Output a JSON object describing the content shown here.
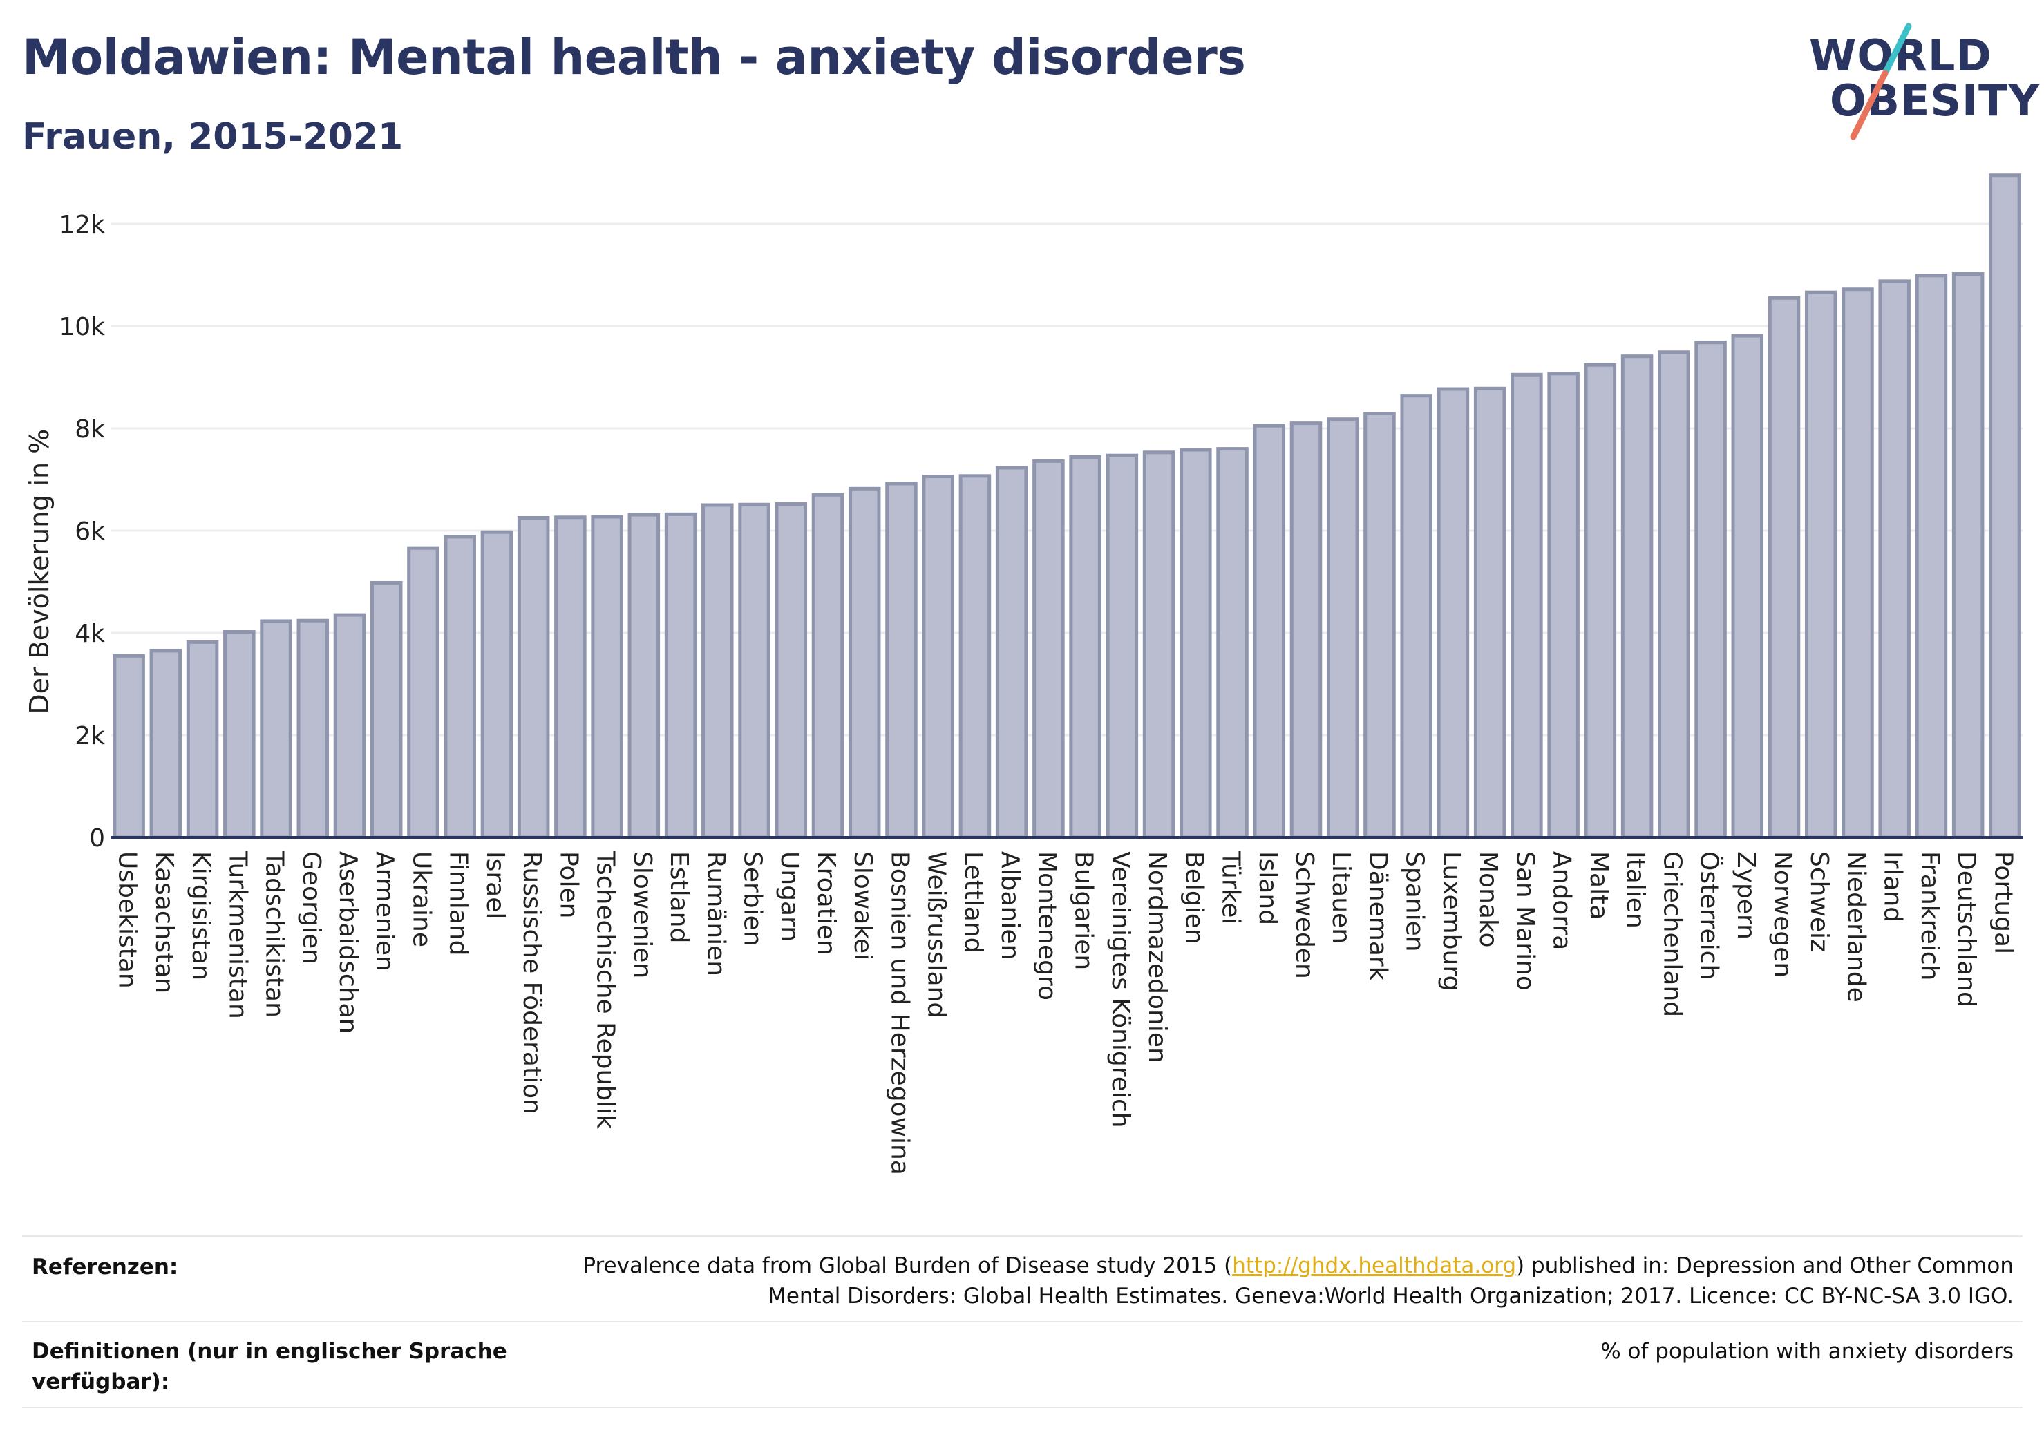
{
  "header": {
    "title": "Moldawien: Mental health - anxiety disorders",
    "subtitle": "Frauen, 2015-2021"
  },
  "logo": {
    "line1": "WORLD",
    "line2": "OBESITY",
    "accent_teal": "#3cbfc7",
    "accent_red": "#e8735c"
  },
  "chart_data": {
    "type": "bar",
    "ylabel": "Der Bevölkerung in %",
    "ylim": [
      0,
      13000
    ],
    "yticks": [
      0,
      2000,
      4000,
      6000,
      8000,
      10000,
      12000
    ],
    "ytick_labels": [
      "0",
      "2k",
      "4k",
      "6k",
      "8k",
      "10k",
      "12k"
    ],
    "grid": true,
    "bar_fill": "#b9bdcf",
    "bar_stroke": "#8f95ad",
    "categories": [
      "Usbekistan",
      "Kasachstan",
      "Kirgisistan",
      "Turkmenistan",
      "Tadschikistan",
      "Georgien",
      "Aserbaidschan",
      "Armenien",
      "Ukraine",
      "Finnland",
      "Israel",
      "Russische Föderation",
      "Polen",
      "Tschechische Republik",
      "Slowenien",
      "Estland",
      "Rumänien",
      "Serbien",
      "Ungarn",
      "Kroatien",
      "Slowakei",
      "Bosnien und Herzegowina",
      "Weißrussland",
      "Lettland",
      "Albanien",
      "Montenegro",
      "Bulgarien",
      "Vereinigtes Königreich",
      "Nordmazedonien",
      "Belgien",
      "Türkei",
      "Island",
      "Schweden",
      "Litauen",
      "Dänemark",
      "Spanien",
      "Luxemburg",
      "Monako",
      "San Marino",
      "Andorra",
      "Malta",
      "Italien",
      "Griechenland",
      "Österreich",
      "Zypern",
      "Norwegen",
      "Schweiz",
      "Niederlande",
      "Irland",
      "Frankreich",
      "Deutschland",
      "Portugal"
    ],
    "values": [
      3550,
      3650,
      3820,
      4020,
      4230,
      4240,
      4350,
      4980,
      5660,
      5880,
      5970,
      6250,
      6260,
      6270,
      6310,
      6320,
      6500,
      6510,
      6520,
      6700,
      6820,
      6920,
      7060,
      7070,
      7230,
      7360,
      7440,
      7470,
      7530,
      7580,
      7600,
      8050,
      8100,
      8180,
      8290,
      8640,
      8770,
      8780,
      9050,
      9070,
      9240,
      9410,
      9490,
      9680,
      9810,
      10550,
      10660,
      10720,
      10880,
      10990,
      11020,
      12950
    ]
  },
  "footer": {
    "references_label": "Referenzen:",
    "references_text_before": "Prevalence data from Global Burden of Disease study 2015 (",
    "references_link": "http://ghdx.healthdata.org",
    "references_text_after": ") published in: Depression and Other Common Mental Disorders: Global Health Estimates. Geneva:World Health Organization; 2017. Licence: CC BY-NC-SA 3.0 IGO.",
    "definitions_label": "Definitionen (nur in englischer Sprache verfügbar):",
    "definitions_text": "% of population with anxiety disorders"
  }
}
